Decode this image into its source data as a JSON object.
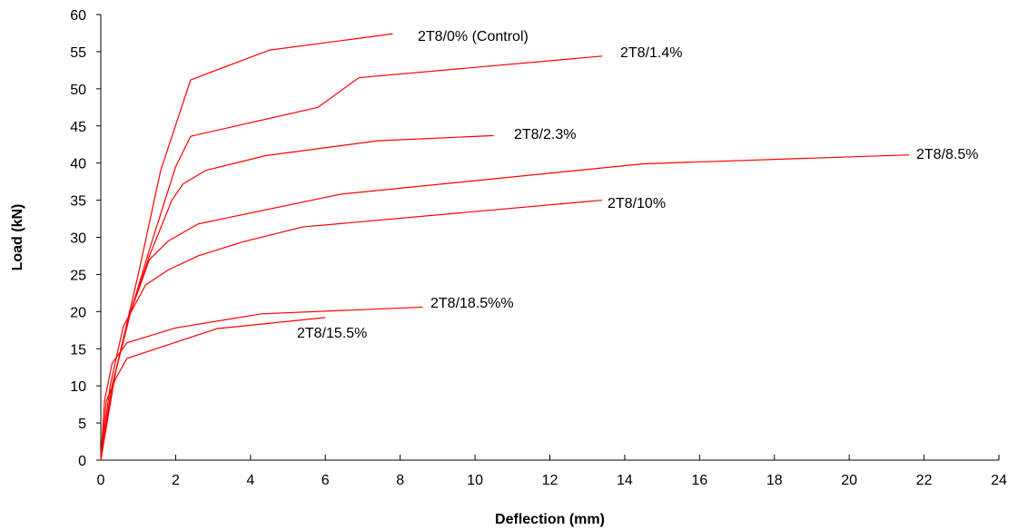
{
  "chart_data": {
    "type": "line",
    "title": "",
    "xlabel": "Deflection (mm)",
    "ylabel": "Load (kN)",
    "xlim": [
      0,
      24
    ],
    "ylim": [
      0,
      60
    ],
    "xticks": [
      0,
      2,
      4,
      6,
      8,
      10,
      12,
      14,
      16,
      18,
      20,
      22,
      24
    ],
    "yticks": [
      0,
      5,
      10,
      15,
      20,
      25,
      30,
      35,
      40,
      45,
      50,
      55,
      60
    ],
    "grid": false,
    "legend": "none (series labelled directly at line ends)",
    "line_color": "#ff0000",
    "series": [
      {
        "name": "2T8/0% (Control)",
        "points": [
          [
            0,
            0
          ],
          [
            0.4,
            12
          ],
          [
            1.0,
            25
          ],
          [
            1.6,
            39
          ],
          [
            2.4,
            51.2
          ],
          [
            4.5,
            55.2
          ],
          [
            7.8,
            57.4
          ]
        ]
      },
      {
        "name": "2T8/1.4%",
        "points": [
          [
            0,
            0
          ],
          [
            0.3,
            10
          ],
          [
            0.8,
            20
          ],
          [
            1.4,
            30
          ],
          [
            2.0,
            39.5
          ],
          [
            2.4,
            43.6
          ],
          [
            5.8,
            47.5
          ],
          [
            6.9,
            51.5
          ],
          [
            13.4,
            54.4
          ]
        ]
      },
      {
        "name": "2T8/2.3%",
        "points": [
          [
            0,
            0
          ],
          [
            0.3,
            10
          ],
          [
            0.8,
            20
          ],
          [
            1.3,
            27.5
          ],
          [
            1.9,
            35
          ],
          [
            2.2,
            37.2
          ],
          [
            2.8,
            39
          ],
          [
            4.4,
            41
          ],
          [
            7.4,
            43
          ],
          [
            10.5,
            43.7
          ]
        ]
      },
      {
        "name": "2T8/8.5%",
        "points": [
          [
            0,
            0
          ],
          [
            0.3,
            10
          ],
          [
            0.8,
            20
          ],
          [
            1.3,
            27
          ],
          [
            1.8,
            29.5
          ],
          [
            2.6,
            31.8
          ],
          [
            6.4,
            35.8
          ],
          [
            14.5,
            39.9
          ],
          [
            21.6,
            41.1
          ]
        ]
      },
      {
        "name": "2T8/10%",
        "points": [
          [
            0,
            0
          ],
          [
            0.25,
            10
          ],
          [
            0.6,
            18
          ],
          [
            1.2,
            23.6
          ],
          [
            1.8,
            25.6
          ],
          [
            2.6,
            27.5
          ],
          [
            3.8,
            29.4
          ],
          [
            5.4,
            31.4
          ],
          [
            13.4,
            35
          ]
        ]
      },
      {
        "name": "2T8/18.5%%",
        "points": [
          [
            0,
            0
          ],
          [
            0.1,
            8
          ],
          [
            0.3,
            13
          ],
          [
            0.7,
            15.8
          ],
          [
            2.0,
            17.8
          ],
          [
            4.3,
            19.7
          ],
          [
            8.6,
            20.6
          ]
        ]
      },
      {
        "name": "2T8/15.5%",
        "points": [
          [
            0,
            0
          ],
          [
            0.15,
            8
          ],
          [
            0.4,
            11
          ],
          [
            0.7,
            13.7
          ],
          [
            3.1,
            17.7
          ],
          [
            6.0,
            19.2
          ]
        ]
      }
    ]
  }
}
